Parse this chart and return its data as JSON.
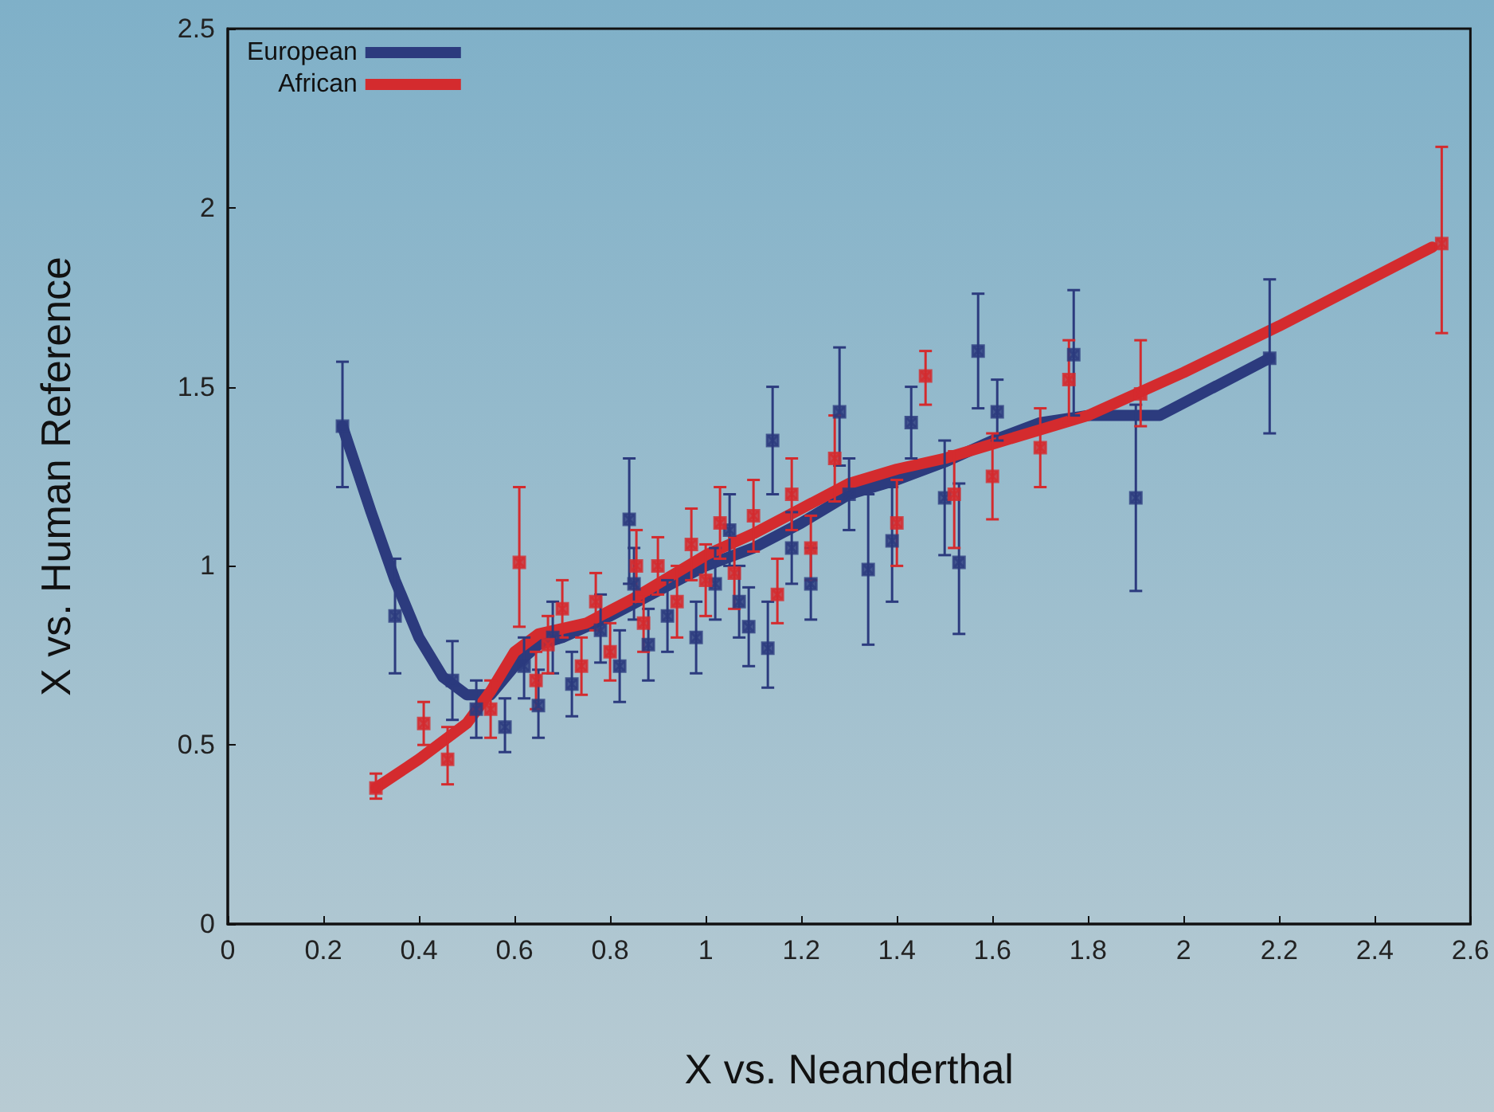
{
  "chart_data": {
    "type": "scatter",
    "xlabel": "X vs. Neanderthal",
    "ylabel": "X vs. Human Reference",
    "xlim": [
      0,
      2.6
    ],
    "ylim": [
      0,
      2.5
    ],
    "xticks": [
      0,
      0.2,
      0.4,
      0.6,
      0.8,
      1,
      1.2,
      1.4,
      1.6,
      1.8,
      2,
      2.2,
      2.4,
      2.6
    ],
    "yticks": [
      0,
      0.5,
      1,
      1.5,
      2,
      2.5
    ],
    "grid": false,
    "legend": "top left",
    "marker": "cross",
    "series": [
      {
        "color": "#2c3b7e",
        "x": [
          0.24,
          0.35,
          0.47,
          0.52,
          0.58,
          0.62,
          0.65,
          0.68,
          0.72,
          0.78,
          0.82,
          0.84,
          0.85,
          0.88,
          0.92,
          0.98,
          1.02,
          1.05,
          1.07,
          1.09,
          1.13,
          1.14,
          1.18,
          1.22,
          1.28,
          1.3,
          1.34,
          1.39,
          1.43,
          1.5,
          1.53,
          1.57,
          1.61,
          1.77,
          1.9,
          2.18
        ],
        "values": [
          1.39,
          0.86,
          0.68,
          0.6,
          0.55,
          0.72,
          0.61,
          0.8,
          0.67,
          0.82,
          0.72,
          1.13,
          0.95,
          0.78,
          0.86,
          0.8,
          0.95,
          1.1,
          0.9,
          0.83,
          0.77,
          1.35,
          1.05,
          0.95,
          1.43,
          1.2,
          0.99,
          1.07,
          1.4,
          1.19,
          1.01,
          1.6,
          1.43,
          1.59,
          1.19,
          1.58
        ],
        "errors": [
          [
            1.22,
            1.57
          ],
          [
            0.7,
            1.02
          ],
          [
            0.57,
            0.79
          ],
          [
            0.52,
            0.68
          ],
          [
            0.48,
            0.63
          ],
          [
            0.63,
            0.8
          ],
          [
            0.52,
            0.71
          ],
          [
            0.7,
            0.9
          ],
          [
            0.58,
            0.76
          ],
          [
            0.73,
            0.92
          ],
          [
            0.62,
            0.82
          ],
          [
            0.95,
            1.3
          ],
          [
            0.85,
            1.05
          ],
          [
            0.68,
            0.88
          ],
          [
            0.76,
            0.96
          ],
          [
            0.7,
            0.9
          ],
          [
            0.85,
            1.05
          ],
          [
            1,
            1.2
          ],
          [
            0.8,
            1
          ],
          [
            0.72,
            0.94
          ],
          [
            0.66,
            0.9
          ],
          [
            1.2,
            1.5
          ],
          [
            0.95,
            1.15
          ],
          [
            0.85,
            1.05
          ],
          [
            1.28,
            1.61
          ],
          [
            1.1,
            1.3
          ],
          [
            0.78,
            1.2
          ],
          [
            0.9,
            1.22
          ],
          [
            1.3,
            1.5
          ],
          [
            1.03,
            1.35
          ],
          [
            0.81,
            1.23
          ],
          [
            1.44,
            1.76
          ],
          [
            1.35,
            1.52
          ],
          [
            1.42,
            1.77
          ],
          [
            0.93,
            1.45
          ],
          [
            1.37,
            1.8
          ]
        ]
      },
      {
        "color": "#d42b2e",
        "x": [
          0.31,
          0.41,
          0.46,
          0.55,
          0.61,
          0.645,
          0.67,
          0.7,
          0.74,
          0.77,
          0.8,
          0.855,
          0.87,
          0.9,
          0.94,
          0.97,
          1,
          1.03,
          1.06,
          1.1,
          1.15,
          1.18,
          1.22,
          1.27,
          1.4,
          1.46,
          1.52,
          1.6,
          1.7,
          1.76,
          1.91,
          2.54
        ],
        "values": [
          0.38,
          0.56,
          0.46,
          0.6,
          1.01,
          0.68,
          0.78,
          0.88,
          0.72,
          0.9,
          0.76,
          1.0,
          0.84,
          1,
          0.9,
          1.06,
          0.96,
          1.12,
          0.98,
          1.14,
          0.92,
          1.2,
          1.05,
          1.3,
          1.12,
          1.53,
          1.2,
          1.25,
          1.33,
          1.52,
          1.48,
          1.9
        ],
        "errors": [
          [
            0.35,
            0.42
          ],
          [
            0.5,
            0.62
          ],
          [
            0.39,
            0.55
          ],
          [
            0.52,
            0.68
          ],
          [
            0.83,
            1.22
          ],
          [
            0.6,
            0.76
          ],
          [
            0.7,
            0.86
          ],
          [
            0.8,
            0.96
          ],
          [
            0.64,
            0.8
          ],
          [
            0.82,
            0.98
          ],
          [
            0.68,
            0.84
          ],
          [
            0.9,
            1.1
          ],
          [
            0.76,
            0.92
          ],
          [
            0.92,
            1.08
          ],
          [
            0.8,
            1
          ],
          [
            0.96,
            1.16
          ],
          [
            0.86,
            1.06
          ],
          [
            1.02,
            1.22
          ],
          [
            0.88,
            1.08
          ],
          [
            1.04,
            1.24
          ],
          [
            0.84,
            1.02
          ],
          [
            1.1,
            1.3
          ],
          [
            0.96,
            1.14
          ],
          [
            1.18,
            1.42
          ],
          [
            1,
            1.24
          ],
          [
            1.45,
            1.6
          ],
          [
            1.05,
            1.32
          ],
          [
            1.13,
            1.37
          ],
          [
            1.22,
            1.44
          ],
          [
            1.4,
            1.63
          ],
          [
            1.39,
            1.63
          ],
          [
            1.65,
            2.17
          ]
        ]
      },
      {
        "type": "line",
        "name": "European",
        "color": "#2c3b7e",
        "marker": "none",
        "x": [
          0.24,
          0.3,
          0.35,
          0.4,
          0.45,
          0.5,
          0.55,
          0.6,
          0.65,
          0.7,
          0.8,
          0.9,
          1,
          1.1,
          1.2,
          1.3,
          1.4,
          1.5,
          1.6,
          1.7,
          1.8,
          1.95,
          2.18
        ],
        "values": [
          1.39,
          1.15,
          0.96,
          0.8,
          0.69,
          0.64,
          0.64,
          0.72,
          0.78,
          0.8,
          0.86,
          0.93,
          1,
          1.05,
          1.12,
          1.2,
          1.24,
          1.29,
          1.35,
          1.4,
          1.42,
          1.42,
          1.58
        ]
      },
      {
        "type": "line",
        "name": "African",
        "color": "#d42b2e",
        "marker": "none",
        "x": [
          0.31,
          0.4,
          0.5,
          0.55,
          0.6,
          0.65,
          0.75,
          0.85,
          1,
          1.1,
          1.2,
          1.3,
          1.4,
          1.5,
          1.6,
          1.8,
          2,
          2.2,
          2.52
        ],
        "values": [
          0.38,
          0.46,
          0.56,
          0.65,
          0.76,
          0.81,
          0.84,
          0.91,
          1.03,
          1.09,
          1.16,
          1.23,
          1.27,
          1.3,
          1.34,
          1.42,
          1.54,
          1.67,
          1.89
        ]
      }
    ]
  }
}
